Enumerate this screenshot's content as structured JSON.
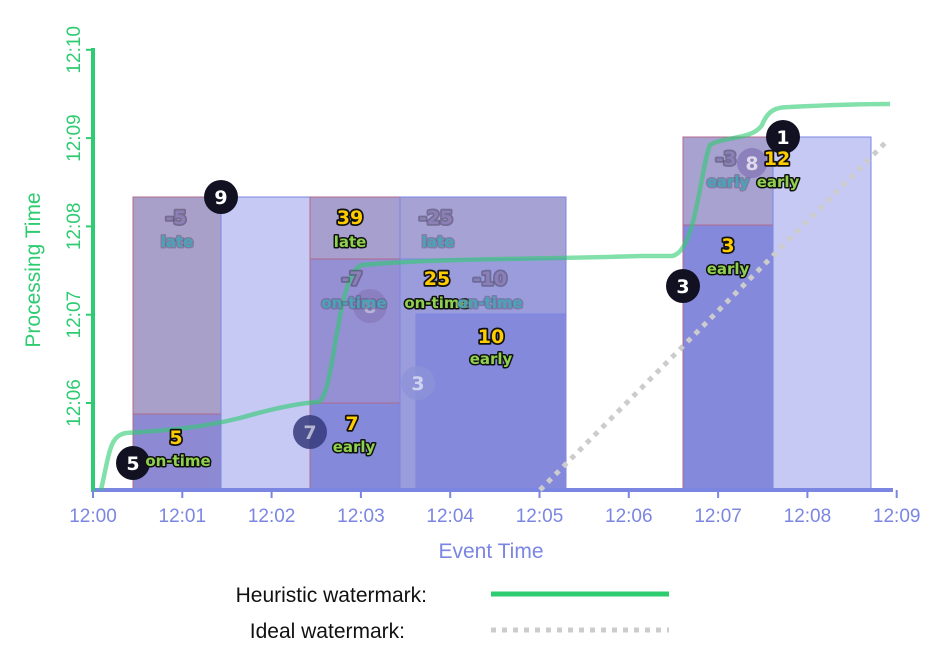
{
  "axes": {
    "x_title": "Event Time",
    "y_title": "Processing Time",
    "x_ticks": [
      "12:00",
      "12:01",
      "12:02",
      "12:03",
      "12:04",
      "12:05",
      "12:06",
      "12:07",
      "12:08",
      "12:09"
    ],
    "y_ticks": [
      "12:06",
      "12:07",
      "12:08",
      "12:09",
      "12:10"
    ]
  },
  "colors": {
    "watermark": "#2ecc71",
    "axis": "#7b86e3",
    "ideal": "#cccccc",
    "pane_fill": "#7f86d9",
    "yellow": "#ffcc00",
    "green_text": "#8fd14f",
    "teal_text": "#4aa3b8",
    "purple_text": "#7d6fa3"
  },
  "legend": {
    "heuristic": "Heuristic watermark:",
    "ideal": "Ideal watermark:"
  },
  "panes": [
    {
      "value": "5",
      "tag": "on-time",
      "style": "yellow"
    },
    {
      "value": "-5",
      "tag": "late",
      "style": "purple"
    },
    {
      "value": "7",
      "tag": "early",
      "style": "yellow"
    },
    {
      "value": "-7",
      "tag": "on-time",
      "style": "purple"
    },
    {
      "value": "39",
      "tag": "late",
      "style": "yellow"
    },
    {
      "value": "25",
      "tag": "on-time",
      "style": "yellow"
    },
    {
      "value": "-25",
      "tag": "late",
      "style": "purple"
    },
    {
      "value": "10",
      "tag": "early",
      "style": "yellow"
    },
    {
      "value": "-10",
      "tag": "on-time",
      "style": "purple"
    },
    {
      "value": "3",
      "tag": "early",
      "style": "yellow"
    },
    {
      "value": "-3",
      "tag": "early",
      "style": "purple"
    },
    {
      "value": "12",
      "tag": "early",
      "style": "yellow"
    }
  ],
  "badges": [
    {
      "value": "5",
      "faded": false
    },
    {
      "value": "9",
      "faded": false
    },
    {
      "value": "7",
      "faded": true
    },
    {
      "value": "3",
      "faded": true
    },
    {
      "value": "8",
      "faded": true
    },
    {
      "value": "3",
      "faded": false
    },
    {
      "value": "8",
      "faded": true
    },
    {
      "value": "1",
      "faded": false
    }
  ]
}
